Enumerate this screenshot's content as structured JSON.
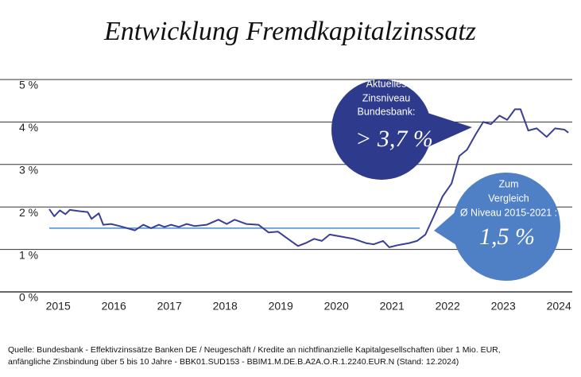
{
  "chart_data": {
    "type": "line",
    "title": "Entwicklung Fremdkapitalzinssatz",
    "x": [
      2015.24,
      2015.33,
      2015.43,
      2015.53,
      2015.61,
      2015.78,
      2015.93,
      2016.0,
      2016.13,
      2016.21,
      2016.35,
      2016.5,
      2016.64,
      2016.78,
      2016.93,
      2017.07,
      2017.21,
      2017.31,
      2017.43,
      2017.57,
      2017.71,
      2017.85,
      2018.07,
      2018.28,
      2018.43,
      2018.57,
      2018.78,
      2019.0,
      2019.18,
      2019.35,
      2019.53,
      2019.71,
      2019.85,
      2020.0,
      2020.14,
      2020.28,
      2020.5,
      2020.71,
      2020.93,
      2021.07,
      2021.24,
      2021.35,
      2021.5,
      2021.71,
      2021.85,
      2022.0,
      2022.14,
      2022.31,
      2022.47,
      2022.61,
      2022.75,
      2022.9,
      2023.04,
      2023.18,
      2023.33,
      2023.47,
      2023.61,
      2023.71,
      2023.85,
      2024.0,
      2024.18,
      2024.33,
      2024.5,
      2024.57
    ],
    "series": [
      {
        "color": "#3a3f94",
        "values": [
          1.95,
          1.78,
          1.92,
          1.83,
          1.93,
          1.9,
          1.88,
          1.72,
          1.85,
          1.58,
          1.6,
          1.55,
          1.5,
          1.45,
          1.58,
          1.5,
          1.58,
          1.53,
          1.58,
          1.53,
          1.6,
          1.55,
          1.58,
          1.7,
          1.6,
          1.7,
          1.6,
          1.58,
          1.4,
          1.42,
          1.25,
          1.08,
          1.15,
          1.25,
          1.2,
          1.35,
          1.3,
          1.25,
          1.15,
          1.12,
          1.2,
          1.05,
          1.1,
          1.15,
          1.2,
          1.35,
          1.75,
          2.25,
          2.55,
          3.2,
          3.35,
          3.7,
          4.0,
          3.95,
          4.15,
          4.05,
          4.3,
          4.3,
          3.8,
          3.85,
          3.65,
          3.85,
          3.82,
          3.75
        ]
      }
    ],
    "reference_line": {
      "value": 1.5,
      "x": [
        2015.24,
        2021.9
      ],
      "color": "#4a8bd0"
    },
    "xlim": [
      2015.24,
      2024.64
    ],
    "xticks": [
      {
        "value": 2015.4,
        "label": "2015"
      },
      {
        "value": 2016.4,
        "label": "2016"
      },
      {
        "value": 2017.4,
        "label": "2017"
      },
      {
        "value": 2018.4,
        "label": "2018"
      },
      {
        "value": 2019.4,
        "label": "2019"
      },
      {
        "value": 2020.4,
        "label": "2020"
      },
      {
        "value": 2021.4,
        "label": "2021"
      },
      {
        "value": 2022.4,
        "label": "2022"
      },
      {
        "value": 2023.4,
        "label": "2023"
      },
      {
        "value": 2024.4,
        "label": "2024"
      }
    ],
    "ylim": [
      0,
      5
    ],
    "yticks": [
      {
        "value": 0,
        "label": "0 %"
      },
      {
        "value": 1,
        "label": "1 %"
      },
      {
        "value": 2,
        "label": "2 %"
      },
      {
        "value": 3,
        "label": "3 %"
      },
      {
        "value": 4,
        "label": "4 %"
      },
      {
        "value": 5,
        "label": "5 %"
      }
    ],
    "grid": true,
    "annotations": [
      {
        "lines": [
          "Aktuelles",
          "Zinsniveau",
          "Bundesbank:"
        ],
        "highlight": "> 3,7 %",
        "color": "#2e3a8c"
      },
      {
        "lines": [
          "Zum",
          "Vergleich",
          "Ø Niveau 2015-2021 :"
        ],
        "highlight": "1,5 %",
        "color": "#4f7fc5"
      }
    ],
    "source": [
      "Quelle: Bundesbank - Effektivzinssätze Banken DE / Neugeschäft / Kredite an nichtfinanzielle Kapitalgesellschaften über 1 Mio. EUR,",
      "anfängliche Zinsbindung über 5 bis 10 Jahre - BBK01.SUD153 - BBIM1.M.DE.B.A2A.O.R.1.2240.EUR.N (Stand: 12.2024)"
    ]
  }
}
